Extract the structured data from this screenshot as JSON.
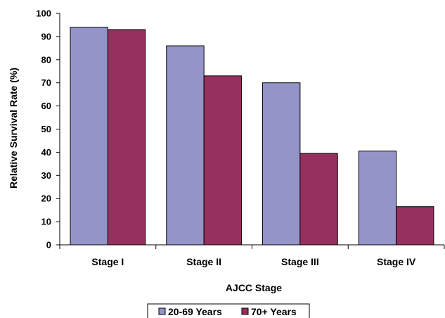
{
  "chart_data": {
    "type": "bar",
    "categories": [
      "Stage I",
      "Stage II",
      "Stage III",
      "Stage IV"
    ],
    "series": [
      {
        "name": "20-69 Years",
        "color": "#9494c8",
        "values": [
          94,
          86,
          70,
          40.5
        ]
      },
      {
        "name": "70+ Years",
        "color": "#96305e",
        "values": [
          93,
          73,
          39.5,
          16.5
        ]
      }
    ],
    "xlabel": "AJCC Stage",
    "ylabel": "Relative Survival Rate (%)",
    "ylim": [
      0,
      100
    ],
    "yticks": [
      0,
      10,
      20,
      30,
      40,
      50,
      60,
      70,
      80,
      90,
      100
    ],
    "grid": false,
    "legend_position": "bottom"
  }
}
